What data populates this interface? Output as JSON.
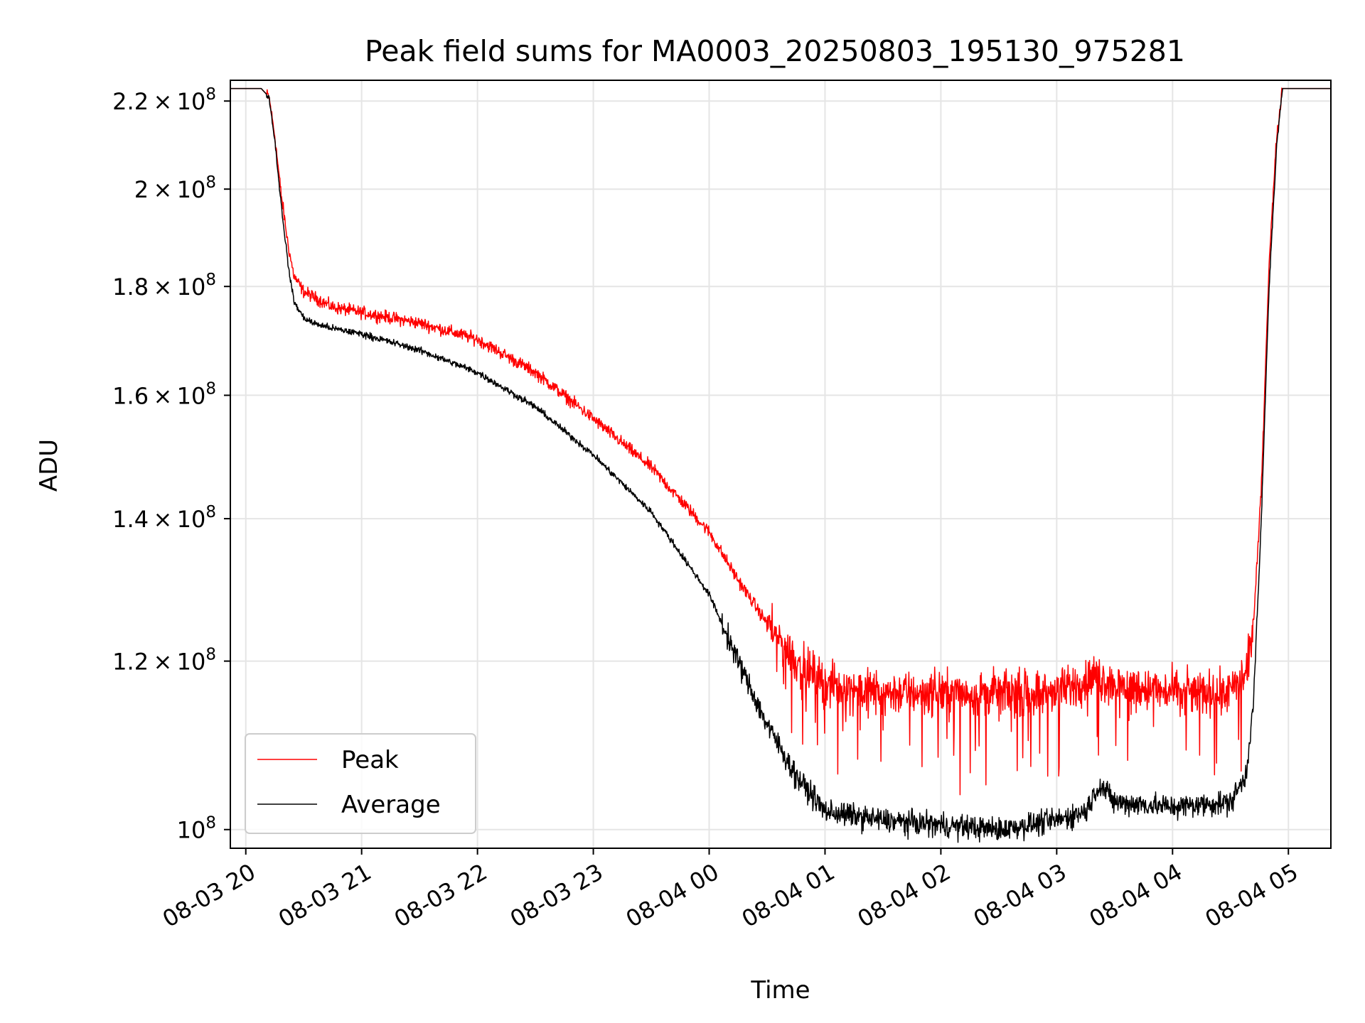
{
  "chart_data": {
    "type": "line",
    "title": "Peak field sums for MA0003_20250803_195130_975281",
    "xlabel": "Time",
    "ylabel": "ADU",
    "y_scale": "log",
    "xlim": [
      "2025-08-03 19:52",
      "2025-08-04 05:22"
    ],
    "ylim": [
      98000000,
      225000000
    ],
    "grid": true,
    "legend_placement": "lower left",
    "x_ticks": [
      {
        "value": "2025-08-03 20:00",
        "label": "08-03 20"
      },
      {
        "value": "2025-08-03 21:00",
        "label": "08-03 21"
      },
      {
        "value": "2025-08-03 22:00",
        "label": "08-03 22"
      },
      {
        "value": "2025-08-03 23:00",
        "label": "08-03 23"
      },
      {
        "value": "2025-08-04 00:00",
        "label": "08-04 00"
      },
      {
        "value": "2025-08-04 01:00",
        "label": "08-04 01"
      },
      {
        "value": "2025-08-04 02:00",
        "label": "08-04 02"
      },
      {
        "value": "2025-08-04 03:00",
        "label": "08-04 03"
      },
      {
        "value": "2025-08-04 04:00",
        "label": "08-04 04"
      },
      {
        "value": "2025-08-04 05:00",
        "label": "08-04 05"
      }
    ],
    "y_ticks": [
      {
        "value": 100000000,
        "mantissa": "",
        "exp": "8"
      },
      {
        "value": 120000000,
        "mantissa": "1.2",
        "exp": "8"
      },
      {
        "value": 140000000,
        "mantissa": "1.4",
        "exp": "8"
      },
      {
        "value": 160000000,
        "mantissa": "1.6",
        "exp": "8"
      },
      {
        "value": 180000000,
        "mantissa": "1.8",
        "exp": "8"
      },
      {
        "value": 200000000,
        "mantissa": "2",
        "exp": "8"
      },
      {
        "value": 220000000,
        "mantissa": "2.2",
        "exp": "8"
      }
    ],
    "series": [
      {
        "name": "Peak",
        "color": "#ff0000",
        "noise": 0.022,
        "x": [
          "2025-08-03 19:52",
          "2025-08-03 20:08",
          "2025-08-03 20:12",
          "2025-08-03 20:15",
          "2025-08-03 20:18",
          "2025-08-03 20:22",
          "2025-08-03 20:25",
          "2025-08-03 20:30",
          "2025-08-03 20:35",
          "2025-08-03 20:45",
          "2025-08-03 21:00",
          "2025-08-03 21:30",
          "2025-08-03 22:00",
          "2025-08-03 22:30",
          "2025-08-03 23:00",
          "2025-08-03 23:30",
          "2025-08-04 00:00",
          "2025-08-04 00:15",
          "2025-08-04 00:30",
          "2025-08-04 00:45",
          "2025-08-04 01:00",
          "2025-08-04 01:30",
          "2025-08-04 02:00",
          "2025-08-04 02:30",
          "2025-08-04 03:00",
          "2025-08-04 03:20",
          "2025-08-04 03:30",
          "2025-08-04 04:00",
          "2025-08-04 04:30",
          "2025-08-04 04:38",
          "2025-08-04 04:42",
          "2025-08-04 04:46",
          "2025-08-04 04:50",
          "2025-08-04 04:54",
          "2025-08-04 04:57",
          "2025-08-04 05:22"
        ],
        "y": [
          223000000,
          223000000,
          221000000,
          212000000,
          200000000,
          188000000,
          182000000,
          179000000,
          178000000,
          176000000,
          175000000,
          173000000,
          170000000,
          164000000,
          156000000,
          148000000,
          138000000,
          131000000,
          125000000,
          120000000,
          117000000,
          116000000,
          116000000,
          116000000,
          116000000,
          118000000,
          117000000,
          116000000,
          116000000,
          118000000,
          125000000,
          145000000,
          185000000,
          212000000,
          223000000,
          223000000
        ]
      },
      {
        "name": "Average",
        "color": "#000000",
        "noise": 0.012,
        "x": [
          "2025-08-03 19:52",
          "2025-08-03 20:08",
          "2025-08-03 20:12",
          "2025-08-03 20:15",
          "2025-08-03 20:18",
          "2025-08-03 20:22",
          "2025-08-03 20:25",
          "2025-08-03 20:30",
          "2025-08-03 20:35",
          "2025-08-03 20:45",
          "2025-08-03 21:00",
          "2025-08-03 21:30",
          "2025-08-03 22:00",
          "2025-08-03 22:30",
          "2025-08-03 23:00",
          "2025-08-03 23:30",
          "2025-08-04 00:00",
          "2025-08-04 00:15",
          "2025-08-04 00:30",
          "2025-08-04 00:45",
          "2025-08-04 01:00",
          "2025-08-04 01:30",
          "2025-08-04 02:00",
          "2025-08-04 02:30",
          "2025-08-04 03:00",
          "2025-08-04 03:15",
          "2025-08-04 03:22",
          "2025-08-04 03:30",
          "2025-08-04 04:00",
          "2025-08-04 04:30",
          "2025-08-04 04:38",
          "2025-08-04 04:42",
          "2025-08-04 04:46",
          "2025-08-04 04:50",
          "2025-08-04 04:54",
          "2025-08-04 04:57",
          "2025-08-04 05:22"
        ],
        "y": [
          223000000,
          223000000,
          221000000,
          211000000,
          198000000,
          184000000,
          177000000,
          174000000,
          173000000,
          172000000,
          171000000,
          168000000,
          164000000,
          158000000,
          150000000,
          141000000,
          129000000,
          120000000,
          112000000,
          106000000,
          102000000,
          101000000,
          100500000,
          100000000,
          101000000,
          102000000,
          105000000,
          103000000,
          102500000,
          103000000,
          106000000,
          115000000,
          140000000,
          180000000,
          210000000,
          223000000,
          223000000
        ]
      }
    ]
  }
}
